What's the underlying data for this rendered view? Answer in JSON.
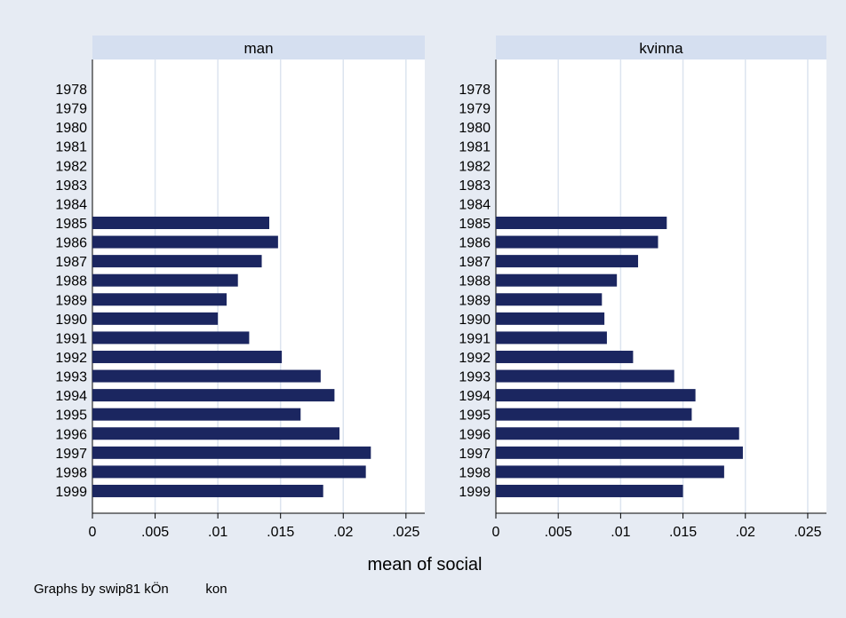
{
  "chart_data": {
    "type": "bar",
    "orientation": "horizontal",
    "colors": {
      "background": "#e6ebf3",
      "plot": "#ffffff",
      "strip": "#d5dff0",
      "bar": "#1b2660",
      "grid": "#dce4ef"
    },
    "categories": [
      "1978",
      "1979",
      "1980",
      "1981",
      "1982",
      "1983",
      "1984",
      "1985",
      "1986",
      "1987",
      "1988",
      "1989",
      "1990",
      "1991",
      "1992",
      "1993",
      "1994",
      "1995",
      "1996",
      "1997",
      "1998",
      "1999"
    ],
    "panels": [
      {
        "title": "man",
        "values": [
          null,
          null,
          null,
          null,
          null,
          null,
          null,
          0.0141,
          0.0148,
          0.0135,
          0.0116,
          0.0107,
          0.01,
          0.0125,
          0.0151,
          0.0182,
          0.0193,
          0.0166,
          0.0197,
          0.0222,
          0.0218,
          0.0184
        ]
      },
      {
        "title": "kvinna",
        "values": [
          null,
          null,
          null,
          null,
          null,
          null,
          null,
          0.0137,
          0.013,
          0.0114,
          0.0097,
          0.0085,
          0.0087,
          0.0089,
          0.011,
          0.0143,
          0.016,
          0.0157,
          0.0195,
          0.0198,
          0.0183,
          0.015
        ]
      }
    ],
    "xticks": [
      "0",
      ".005",
      ".01",
      ".015",
      ".02",
      ".025"
    ],
    "xtick_values": [
      0,
      0.005,
      0.01,
      0.015,
      0.02,
      0.025
    ],
    "xlim": [
      0,
      0.0265
    ],
    "xlabel": "mean of social",
    "note": "Graphs by swip81 kÖn          kon",
    "grid": "vertical"
  }
}
